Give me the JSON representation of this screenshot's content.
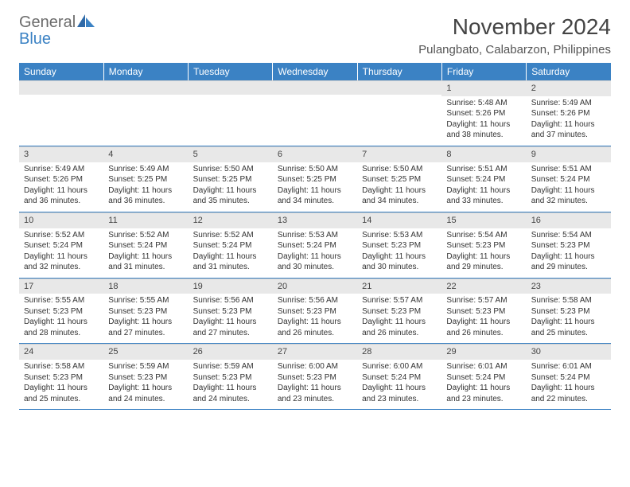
{
  "brand": {
    "part1": "General",
    "part2": "Blue",
    "text_color_gray": "#6b6b6b",
    "text_color_blue": "#3b82c4"
  },
  "title": "November 2024",
  "location": "Pulangbato, Calabarzon, Philippines",
  "colors": {
    "header_bg": "#3b82c4",
    "header_text": "#ffffff",
    "daynum_bg": "#e8e8e8",
    "week_border": "#3b82c4",
    "body_text": "#333333"
  },
  "typography": {
    "title_fontsize": 28,
    "location_fontsize": 15,
    "dayhead_fontsize": 12,
    "daynum_fontsize": 11,
    "cell_fontsize": 10
  },
  "weekday_labels": [
    "Sunday",
    "Monday",
    "Tuesday",
    "Wednesday",
    "Thursday",
    "Friday",
    "Saturday"
  ],
  "weeks": [
    [
      {
        "n": "",
        "sunrise": "",
        "sunset": "",
        "daylight": ""
      },
      {
        "n": "",
        "sunrise": "",
        "sunset": "",
        "daylight": ""
      },
      {
        "n": "",
        "sunrise": "",
        "sunset": "",
        "daylight": ""
      },
      {
        "n": "",
        "sunrise": "",
        "sunset": "",
        "daylight": ""
      },
      {
        "n": "",
        "sunrise": "",
        "sunset": "",
        "daylight": ""
      },
      {
        "n": "1",
        "sunrise": "Sunrise: 5:48 AM",
        "sunset": "Sunset: 5:26 PM",
        "daylight": "Daylight: 11 hours and 38 minutes."
      },
      {
        "n": "2",
        "sunrise": "Sunrise: 5:49 AM",
        "sunset": "Sunset: 5:26 PM",
        "daylight": "Daylight: 11 hours and 37 minutes."
      }
    ],
    [
      {
        "n": "3",
        "sunrise": "Sunrise: 5:49 AM",
        "sunset": "Sunset: 5:26 PM",
        "daylight": "Daylight: 11 hours and 36 minutes."
      },
      {
        "n": "4",
        "sunrise": "Sunrise: 5:49 AM",
        "sunset": "Sunset: 5:25 PM",
        "daylight": "Daylight: 11 hours and 36 minutes."
      },
      {
        "n": "5",
        "sunrise": "Sunrise: 5:50 AM",
        "sunset": "Sunset: 5:25 PM",
        "daylight": "Daylight: 11 hours and 35 minutes."
      },
      {
        "n": "6",
        "sunrise": "Sunrise: 5:50 AM",
        "sunset": "Sunset: 5:25 PM",
        "daylight": "Daylight: 11 hours and 34 minutes."
      },
      {
        "n": "7",
        "sunrise": "Sunrise: 5:50 AM",
        "sunset": "Sunset: 5:25 PM",
        "daylight": "Daylight: 11 hours and 34 minutes."
      },
      {
        "n": "8",
        "sunrise": "Sunrise: 5:51 AM",
        "sunset": "Sunset: 5:24 PM",
        "daylight": "Daylight: 11 hours and 33 minutes."
      },
      {
        "n": "9",
        "sunrise": "Sunrise: 5:51 AM",
        "sunset": "Sunset: 5:24 PM",
        "daylight": "Daylight: 11 hours and 32 minutes."
      }
    ],
    [
      {
        "n": "10",
        "sunrise": "Sunrise: 5:52 AM",
        "sunset": "Sunset: 5:24 PM",
        "daylight": "Daylight: 11 hours and 32 minutes."
      },
      {
        "n": "11",
        "sunrise": "Sunrise: 5:52 AM",
        "sunset": "Sunset: 5:24 PM",
        "daylight": "Daylight: 11 hours and 31 minutes."
      },
      {
        "n": "12",
        "sunrise": "Sunrise: 5:52 AM",
        "sunset": "Sunset: 5:24 PM",
        "daylight": "Daylight: 11 hours and 31 minutes."
      },
      {
        "n": "13",
        "sunrise": "Sunrise: 5:53 AM",
        "sunset": "Sunset: 5:24 PM",
        "daylight": "Daylight: 11 hours and 30 minutes."
      },
      {
        "n": "14",
        "sunrise": "Sunrise: 5:53 AM",
        "sunset": "Sunset: 5:23 PM",
        "daylight": "Daylight: 11 hours and 30 minutes."
      },
      {
        "n": "15",
        "sunrise": "Sunrise: 5:54 AM",
        "sunset": "Sunset: 5:23 PM",
        "daylight": "Daylight: 11 hours and 29 minutes."
      },
      {
        "n": "16",
        "sunrise": "Sunrise: 5:54 AM",
        "sunset": "Sunset: 5:23 PM",
        "daylight": "Daylight: 11 hours and 29 minutes."
      }
    ],
    [
      {
        "n": "17",
        "sunrise": "Sunrise: 5:55 AM",
        "sunset": "Sunset: 5:23 PM",
        "daylight": "Daylight: 11 hours and 28 minutes."
      },
      {
        "n": "18",
        "sunrise": "Sunrise: 5:55 AM",
        "sunset": "Sunset: 5:23 PM",
        "daylight": "Daylight: 11 hours and 27 minutes."
      },
      {
        "n": "19",
        "sunrise": "Sunrise: 5:56 AM",
        "sunset": "Sunset: 5:23 PM",
        "daylight": "Daylight: 11 hours and 27 minutes."
      },
      {
        "n": "20",
        "sunrise": "Sunrise: 5:56 AM",
        "sunset": "Sunset: 5:23 PM",
        "daylight": "Daylight: 11 hours and 26 minutes."
      },
      {
        "n": "21",
        "sunrise": "Sunrise: 5:57 AM",
        "sunset": "Sunset: 5:23 PM",
        "daylight": "Daylight: 11 hours and 26 minutes."
      },
      {
        "n": "22",
        "sunrise": "Sunrise: 5:57 AM",
        "sunset": "Sunset: 5:23 PM",
        "daylight": "Daylight: 11 hours and 26 minutes."
      },
      {
        "n": "23",
        "sunrise": "Sunrise: 5:58 AM",
        "sunset": "Sunset: 5:23 PM",
        "daylight": "Daylight: 11 hours and 25 minutes."
      }
    ],
    [
      {
        "n": "24",
        "sunrise": "Sunrise: 5:58 AM",
        "sunset": "Sunset: 5:23 PM",
        "daylight": "Daylight: 11 hours and 25 minutes."
      },
      {
        "n": "25",
        "sunrise": "Sunrise: 5:59 AM",
        "sunset": "Sunset: 5:23 PM",
        "daylight": "Daylight: 11 hours and 24 minutes."
      },
      {
        "n": "26",
        "sunrise": "Sunrise: 5:59 AM",
        "sunset": "Sunset: 5:23 PM",
        "daylight": "Daylight: 11 hours and 24 minutes."
      },
      {
        "n": "27",
        "sunrise": "Sunrise: 6:00 AM",
        "sunset": "Sunset: 5:23 PM",
        "daylight": "Daylight: 11 hours and 23 minutes."
      },
      {
        "n": "28",
        "sunrise": "Sunrise: 6:00 AM",
        "sunset": "Sunset: 5:24 PM",
        "daylight": "Daylight: 11 hours and 23 minutes."
      },
      {
        "n": "29",
        "sunrise": "Sunrise: 6:01 AM",
        "sunset": "Sunset: 5:24 PM",
        "daylight": "Daylight: 11 hours and 23 minutes."
      },
      {
        "n": "30",
        "sunrise": "Sunrise: 6:01 AM",
        "sunset": "Sunset: 5:24 PM",
        "daylight": "Daylight: 11 hours and 22 minutes."
      }
    ]
  ]
}
